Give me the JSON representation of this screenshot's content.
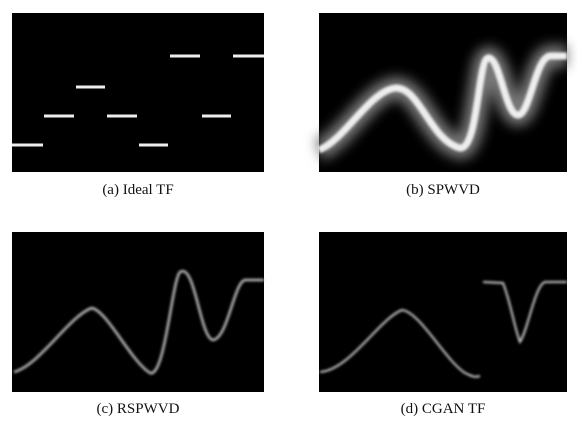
{
  "figure": {
    "panels": [
      {
        "caption": "(a) Ideal TF"
      },
      {
        "caption": "(b) SPWVD"
      },
      {
        "caption": "(c) RSPWVD"
      },
      {
        "caption": "(d) CGAN TF"
      }
    ]
  }
}
